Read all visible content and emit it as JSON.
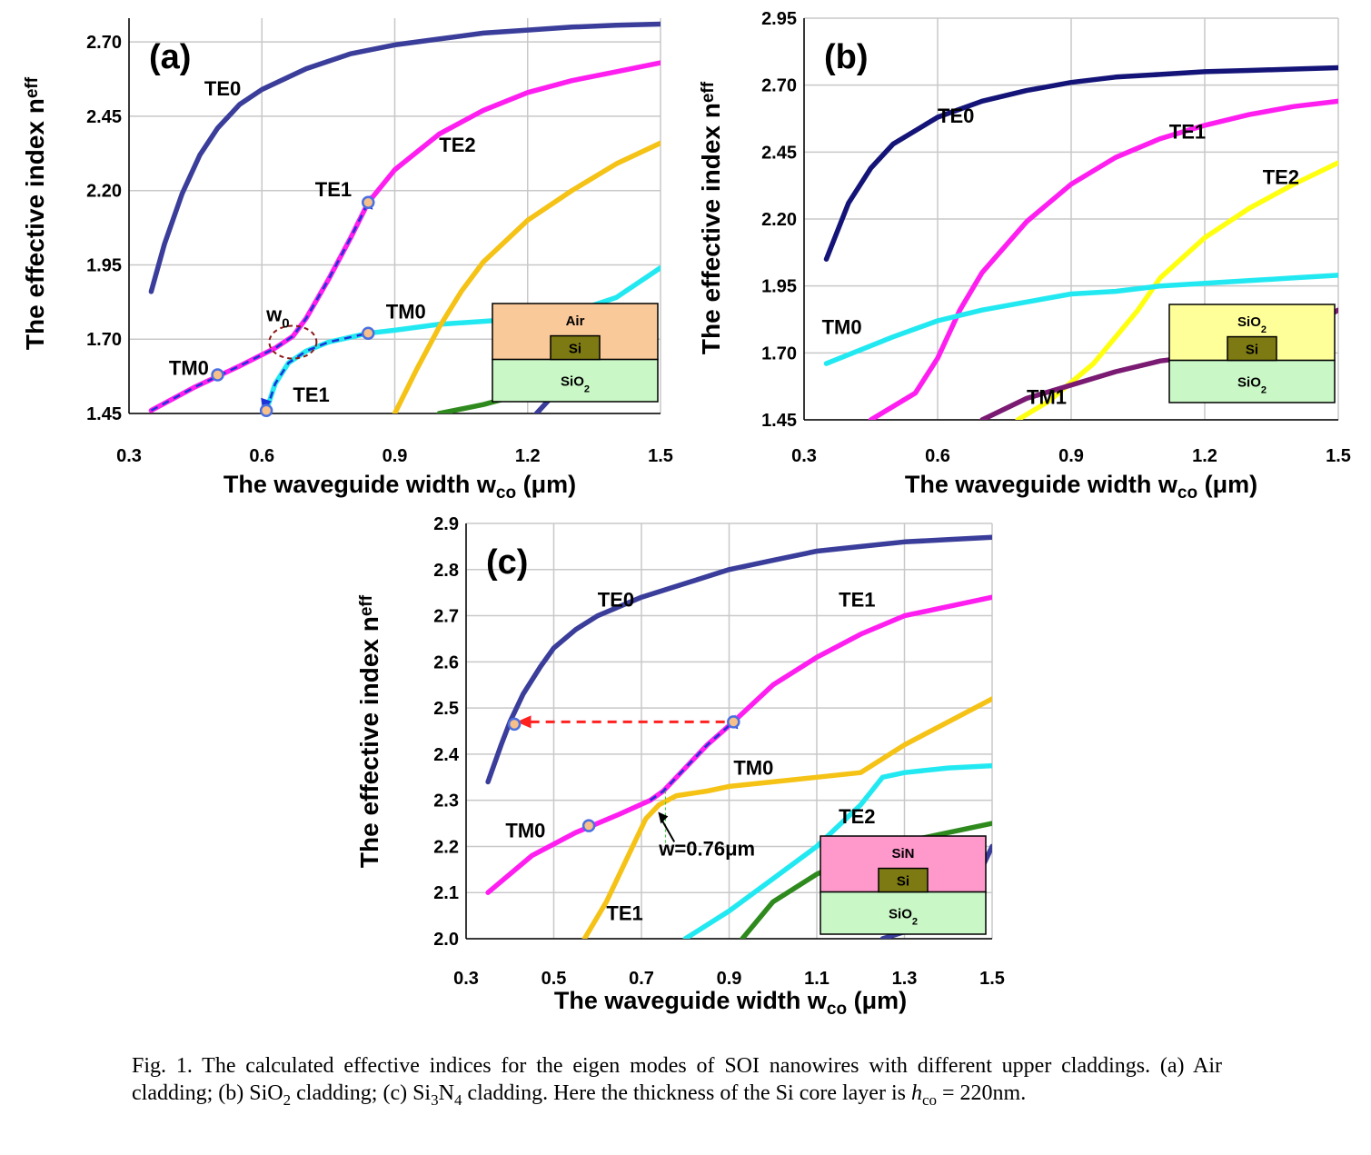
{
  "figure": {
    "caption": {
      "prefix": "Fig. 1. The calculated effective indices for the eigen modes of SOI nanowires with different upper claddings. (a) Air cladding; (b) SiO",
      "sub1": "2",
      "mid1": " cladding; (c) Si",
      "sub2": "3",
      "mid2": "N",
      "sub3": "4",
      "mid3": " cladding. Here the thickness of the Si core layer is ",
      "h_symbol": "h",
      "h_sub": "co",
      "suffix": " = 220nm."
    }
  },
  "colors": {
    "TE0": "#3a3d9a",
    "TE0_dark": "#141478",
    "TE1": "#ff1ef0",
    "TE2": "#f5c216",
    "TE2_bright": "#ffff10",
    "TM0": "#22e9f1",
    "TM1": "#7a1a72",
    "green": "#2f8a1e",
    "arrow_blue": "#1a34d8",
    "arrow_red": "#ff2020",
    "air_box": "#f9c99a",
    "sio2_box": "#c9f7c6",
    "sio2_clad_box": "#ffff99",
    "sin_box": "#ff99cc",
    "si_core": "#7d7a13",
    "marker_fill": "#f7c08a",
    "marker_stroke": "#4a6fe0",
    "grid": "#c8c8c8"
  },
  "chart_data": [
    {
      "id": "a",
      "type": "line",
      "panel_label": "(a)",
      "xlabel": "The waveguide width w",
      "xlabel_sub": "co",
      "xlabel_unit": " (μm)",
      "ylabel": "The effective index n",
      "ylabel_sub": "eff",
      "xlim": [
        0.3,
        1.5
      ],
      "ylim": [
        1.45,
        2.78
      ],
      "xticks": [
        "0.3",
        "0.6",
        "0.9",
        "1.2",
        "1.5"
      ],
      "yticks": [
        "1.45",
        "1.70",
        "1.95",
        "2.20",
        "2.45",
        "2.70"
      ],
      "grid": true,
      "series": [
        {
          "name": "TE0",
          "color": "TE0",
          "x": [
            0.35,
            0.38,
            0.42,
            0.46,
            0.5,
            0.55,
            0.6,
            0.7,
            0.8,
            0.9,
            1.0,
            1.1,
            1.2,
            1.3,
            1.4,
            1.5
          ],
          "y": [
            1.86,
            2.02,
            2.19,
            2.32,
            2.41,
            2.49,
            2.54,
            2.61,
            2.66,
            2.69,
            2.71,
            2.73,
            2.74,
            2.75,
            2.756,
            2.76
          ]
        },
        {
          "name": "TM0",
          "color": "TE1",
          "x": [
            0.35,
            0.45,
            0.55,
            0.63,
            0.67,
            0.7,
            0.75,
            0.8,
            0.84
          ],
          "y": [
            1.46,
            1.54,
            1.61,
            1.67,
            1.71,
            1.77,
            1.9,
            2.04,
            2.16
          ]
        },
        {
          "name": "TE1",
          "color": "TE1",
          "x": [
            0.84,
            0.9,
            1.0,
            1.1,
            1.2,
            1.3,
            1.4,
            1.5
          ],
          "y": [
            2.16,
            2.27,
            2.39,
            2.47,
            2.53,
            2.57,
            2.6,
            2.63
          ]
        },
        {
          "name": "TE1",
          "color": "TM0",
          "x": [
            0.61,
            0.63,
            0.66,
            0.7,
            0.75,
            0.84,
            0.9,
            1.0,
            1.1,
            1.2,
            1.3,
            1.4,
            1.5
          ],
          "y": [
            1.46,
            1.55,
            1.62,
            1.66,
            1.69,
            1.72,
            1.73,
            1.75,
            1.76,
            1.77,
            1.79,
            1.84,
            1.94
          ]
        },
        {
          "name": "TE2",
          "color": "TE2",
          "x": [
            0.9,
            0.95,
            1.0,
            1.05,
            1.1,
            1.2,
            1.3,
            1.4,
            1.5
          ],
          "y": [
            1.45,
            1.6,
            1.74,
            1.86,
            1.96,
            2.1,
            2.2,
            2.29,
            2.36
          ]
        },
        {
          "name": "",
          "color": "green",
          "x": [
            1.0,
            1.1,
            1.2,
            1.35
          ],
          "y": [
            1.45,
            1.48,
            1.52,
            1.58
          ]
        },
        {
          "name": "",
          "color": "TE0",
          "x": [
            1.22,
            1.3
          ],
          "y": [
            1.45,
            1.58
          ]
        }
      ],
      "annotations": [
        {
          "text": "TE0",
          "x": 0.47,
          "y": 2.52
        },
        {
          "text": "TE1",
          "x": 0.72,
          "y": 2.18
        },
        {
          "text": "TE2",
          "x": 1.0,
          "y": 2.33
        },
        {
          "text": "TM0",
          "x": 0.88,
          "y": 1.77
        },
        {
          "text": "TM0",
          "x": 0.39,
          "y": 1.58
        },
        {
          "text": "TE1",
          "x": 0.67,
          "y": 1.49
        },
        {
          "text": "w",
          "sub": "0",
          "x": 0.61,
          "y": 1.76
        }
      ],
      "markers": [
        [
          0.5,
          1.58
        ],
        [
          0.61,
          1.46
        ],
        [
          0.84,
          1.72
        ],
        [
          0.84,
          2.16
        ]
      ],
      "inset": {
        "top": "Air",
        "core": "Si",
        "bottom": "SiO",
        "bottom_sub": "2",
        "top_color": "air_box"
      }
    },
    {
      "id": "b",
      "type": "line",
      "panel_label": "(b)",
      "xlabel": "The waveguide width w",
      "xlabel_sub": "co",
      "xlabel_unit": " (μm)",
      "ylabel": "The effective index n",
      "ylabel_sub": "eff",
      "xlim": [
        0.3,
        1.5
      ],
      "ylim": [
        1.45,
        2.95
      ],
      "xticks": [
        "0.3",
        "0.6",
        "0.9",
        "1.2",
        "1.5"
      ],
      "yticks": [
        "1.45",
        "1.70",
        "1.95",
        "2.20",
        "2.45",
        "2.70",
        "2.95"
      ],
      "grid": true,
      "series": [
        {
          "name": "TE0",
          "color": "TE0_dark",
          "x": [
            0.35,
            0.4,
            0.45,
            0.5,
            0.6,
            0.7,
            0.8,
            0.9,
            1.0,
            1.1,
            1.2,
            1.3,
            1.4,
            1.5
          ],
          "y": [
            2.05,
            2.26,
            2.39,
            2.48,
            2.58,
            2.64,
            2.68,
            2.71,
            2.73,
            2.74,
            2.75,
            2.755,
            2.76,
            2.765
          ]
        },
        {
          "name": "TE1",
          "color": "TE1",
          "x": [
            0.45,
            0.55,
            0.6,
            0.65,
            0.7,
            0.8,
            0.9,
            1.0,
            1.1,
            1.2,
            1.3,
            1.4,
            1.5
          ],
          "y": [
            1.45,
            1.55,
            1.68,
            1.86,
            2.0,
            2.19,
            2.33,
            2.43,
            2.5,
            2.55,
            2.59,
            2.62,
            2.64
          ]
        },
        {
          "name": "TE2",
          "color": "TE2_bright",
          "x": [
            0.78,
            0.85,
            0.95,
            1.0,
            1.05,
            1.1,
            1.2,
            1.3,
            1.4,
            1.5
          ],
          "y": [
            1.45,
            1.52,
            1.66,
            1.76,
            1.86,
            1.98,
            2.13,
            2.24,
            2.33,
            2.41
          ]
        },
        {
          "name": "TM0",
          "color": "TM0",
          "x": [
            0.35,
            0.5,
            0.6,
            0.7,
            0.8,
            0.9,
            1.0,
            1.1,
            1.2,
            1.3,
            1.4,
            1.5
          ],
          "y": [
            1.66,
            1.76,
            1.82,
            1.86,
            1.89,
            1.92,
            1.93,
            1.95,
            1.96,
            1.97,
            1.98,
            1.99
          ]
        },
        {
          "name": "TM1",
          "color": "TM1",
          "x": [
            0.7,
            0.8,
            0.9,
            1.0,
            1.1,
            1.2,
            1.3,
            1.4,
            1.5
          ],
          "y": [
            1.45,
            1.53,
            1.58,
            1.63,
            1.67,
            1.69,
            1.72,
            1.77,
            1.86
          ]
        }
      ],
      "annotations": [
        {
          "text": "TE0",
          "x": 0.6,
          "y": 2.56
        },
        {
          "text": "TE1",
          "x": 1.12,
          "y": 2.5
        },
        {
          "text": "TE2",
          "x": 1.33,
          "y": 2.33
        },
        {
          "text": "TM0",
          "x": 0.34,
          "y": 1.77
        },
        {
          "text": "TM1",
          "x": 0.8,
          "y": 1.51
        }
      ],
      "markers": [],
      "inset": {
        "top": "SiO",
        "top_sub": "2",
        "core": "Si",
        "bottom": "SiO",
        "bottom_sub": "2",
        "top_color": "sio2_clad_box"
      }
    },
    {
      "id": "c",
      "type": "line",
      "panel_label": "(c)",
      "xlabel": "The waveguide width w",
      "xlabel_sub": "co",
      "xlabel_unit": " (μm)",
      "ylabel": "The effective index n",
      "ylabel_sub": "eff",
      "xlim": [
        0.3,
        1.5
      ],
      "ylim": [
        2.0,
        2.9
      ],
      "xticks": [
        "0.3",
        "0.5",
        "0.7",
        "0.9",
        "1.1",
        "1.3",
        "1.5"
      ],
      "yticks": [
        "2.0",
        "2.1",
        "2.2",
        "2.3",
        "2.4",
        "2.5",
        "2.6",
        "2.7",
        "2.8",
        "2.9"
      ],
      "grid": true,
      "series": [
        {
          "name": "TE0",
          "color": "TE0",
          "x": [
            0.35,
            0.38,
            0.4,
            0.43,
            0.47,
            0.5,
            0.55,
            0.6,
            0.7,
            0.8,
            0.9,
            1.0,
            1.1,
            1.2,
            1.3,
            1.4,
            1.5
          ],
          "y": [
            2.34,
            2.42,
            2.47,
            2.53,
            2.59,
            2.63,
            2.67,
            2.7,
            2.74,
            2.77,
            2.8,
            2.82,
            2.84,
            2.85,
            2.86,
            2.865,
            2.87
          ]
        },
        {
          "name": "TM0",
          "color": "TE1",
          "x": [
            0.35,
            0.45,
            0.55,
            0.65,
            0.72,
            0.75,
            0.8,
            0.85,
            0.91
          ],
          "y": [
            2.1,
            2.18,
            2.23,
            2.27,
            2.3,
            2.32,
            2.37,
            2.42,
            2.47
          ]
        },
        {
          "name": "TE1",
          "color": "TE1",
          "x": [
            0.91,
            1.0,
            1.1,
            1.2,
            1.3,
            1.4,
            1.5
          ],
          "y": [
            2.47,
            2.55,
            2.61,
            2.66,
            2.7,
            2.72,
            2.74
          ]
        },
        {
          "name": "TE1",
          "color": "TE2",
          "x": [
            0.57,
            0.62,
            0.67,
            0.71,
            0.74,
            0.78,
            0.85,
            0.9,
            1.0,
            1.1,
            1.2,
            1.3,
            1.4,
            1.5
          ],
          "y": [
            2.0,
            2.08,
            2.18,
            2.26,
            2.29,
            2.31,
            2.32,
            2.33,
            2.34,
            2.35,
            2.36,
            2.42,
            2.47,
            2.52
          ]
        },
        {
          "name": "TE2",
          "color": "TM0",
          "x": [
            0.8,
            0.9,
            1.0,
            1.1,
            1.2,
            1.25,
            1.3,
            1.4,
            1.5
          ],
          "y": [
            2.0,
            2.06,
            2.13,
            2.2,
            2.29,
            2.35,
            2.36,
            2.37,
            2.375
          ]
        },
        {
          "name": "",
          "color": "green",
          "x": [
            0.93,
            1.0,
            1.1,
            1.2,
            1.3,
            1.4,
            1.5
          ],
          "y": [
            2.0,
            2.08,
            2.14,
            2.18,
            2.21,
            2.23,
            2.25
          ]
        },
        {
          "name": "",
          "color": "TE0",
          "x": [
            1.25,
            1.35,
            1.45,
            1.5
          ],
          "y": [
            2.0,
            2.03,
            2.1,
            2.2
          ]
        }
      ],
      "annotations": [
        {
          "text": "TE0",
          "x": 0.6,
          "y": 2.72
        },
        {
          "text": "TE1",
          "x": 1.15,
          "y": 2.72
        },
        {
          "text": "TM0",
          "x": 0.91,
          "y": 2.355
        },
        {
          "text": "TM0",
          "x": 0.39,
          "y": 2.22
        },
        {
          "text": "TE1",
          "x": 0.62,
          "y": 2.04
        },
        {
          "text": "TE2",
          "x": 1.15,
          "y": 2.25
        },
        {
          "text": "w=0.76μm",
          "x": 0.74,
          "y": 2.18
        }
      ],
      "markers": [
        [
          0.41,
          2.465
        ],
        [
          0.58,
          2.245
        ],
        [
          0.91,
          2.47
        ]
      ],
      "inset": {
        "top": "SiN",
        "core": "Si",
        "bottom": "SiO",
        "bottom_sub": "2",
        "top_color": "sin_box"
      }
    }
  ]
}
